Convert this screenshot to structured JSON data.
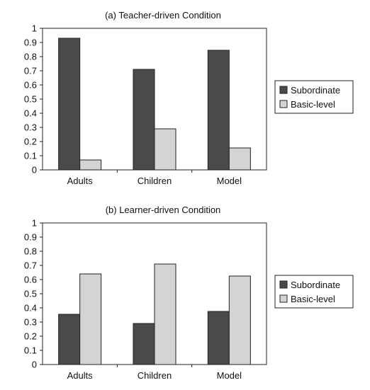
{
  "chart_data": [
    {
      "type": "bar",
      "title": "(a) Teacher-driven Condition",
      "categories": [
        "Adults",
        "Children",
        "Model"
      ],
      "series": [
        {
          "name": "Subordinate",
          "values": [
            0.93,
            0.71,
            0.845
          ],
          "color": "#4a4a4a"
        },
        {
          "name": "Basic-level",
          "values": [
            0.07,
            0.29,
            0.155
          ],
          "color": "#d4d4d4"
        }
      ],
      "ylim": [
        0,
        1
      ],
      "yticks": [
        "0",
        "0.1",
        "0.2",
        "0.3",
        "0.4",
        "0.5",
        "0.6",
        "0.7",
        "0.8",
        "0.9",
        "1"
      ],
      "grid": false,
      "legend": "right"
    },
    {
      "type": "bar",
      "title": "(b) Learner-driven Condition",
      "categories": [
        "Adults",
        "Children",
        "Model"
      ],
      "series": [
        {
          "name": "Subordinate",
          "values": [
            0.355,
            0.29,
            0.375
          ],
          "color": "#4a4a4a"
        },
        {
          "name": "Basic-level",
          "values": [
            0.64,
            0.71,
            0.625
          ],
          "color": "#d4d4d4"
        }
      ],
      "ylim": [
        0,
        1
      ],
      "yticks": [
        "0",
        "0.1",
        "0.2",
        "0.3",
        "0.4",
        "0.5",
        "0.6",
        "0.7",
        "0.8",
        "0.9",
        "1"
      ],
      "grid": false,
      "legend": "right"
    }
  ]
}
